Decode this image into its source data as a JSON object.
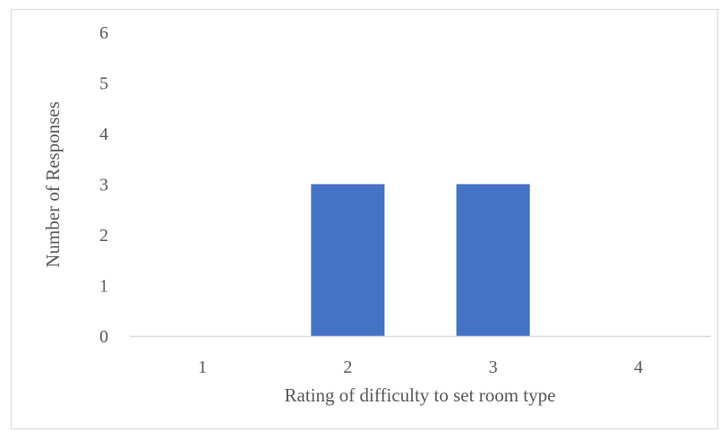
{
  "chart_data": {
    "type": "bar",
    "categories": [
      "1",
      "2",
      "3",
      "4"
    ],
    "values": [
      0,
      3,
      3,
      0
    ],
    "xlabel": "Rating of difficulty to set room type",
    "ylabel": "Number of Responses",
    "ylim": [
      0,
      6
    ],
    "yticks": [
      "0",
      "1",
      "2",
      "3",
      "4",
      "5",
      "6"
    ],
    "grid": false,
    "legend": "none",
    "bar_color": "#4472C4",
    "axis_color": "#d9d9d9"
  }
}
